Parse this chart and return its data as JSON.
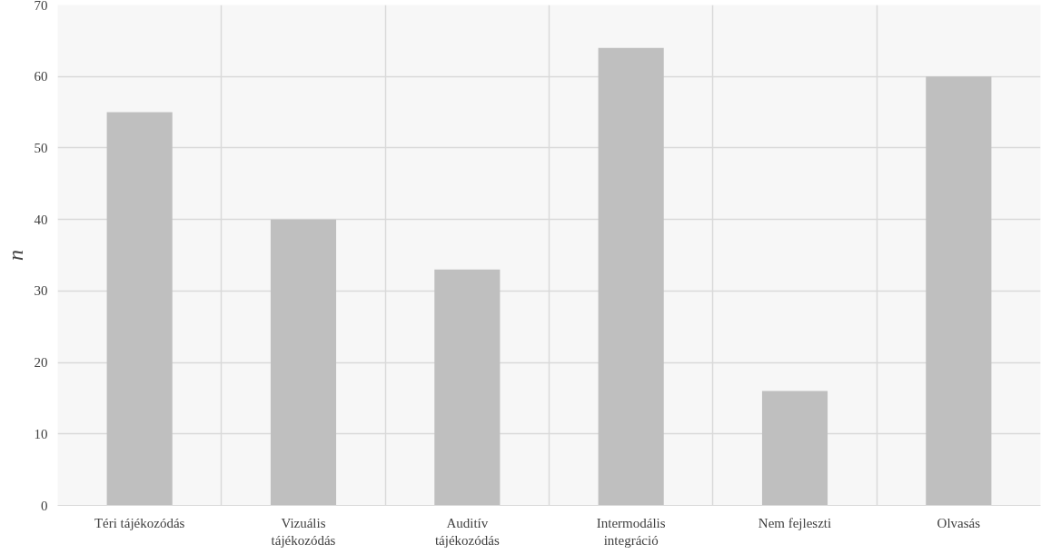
{
  "chart_data": {
    "type": "bar",
    "ylabel": "n",
    "categories": [
      "Téri tájékozódás",
      "Vizuális tájékozódás",
      "Auditív tájékozódás",
      "Intermodális integráció",
      "Nem fejleszti",
      "Olvasás"
    ],
    "values": [
      55,
      40,
      33,
      64,
      16,
      60
    ],
    "color": "#bfbfbf",
    "ylim": [
      0,
      70
    ],
    "yticks": [
      0,
      10,
      20,
      30,
      40,
      50,
      60,
      70
    ],
    "grid": true
  }
}
